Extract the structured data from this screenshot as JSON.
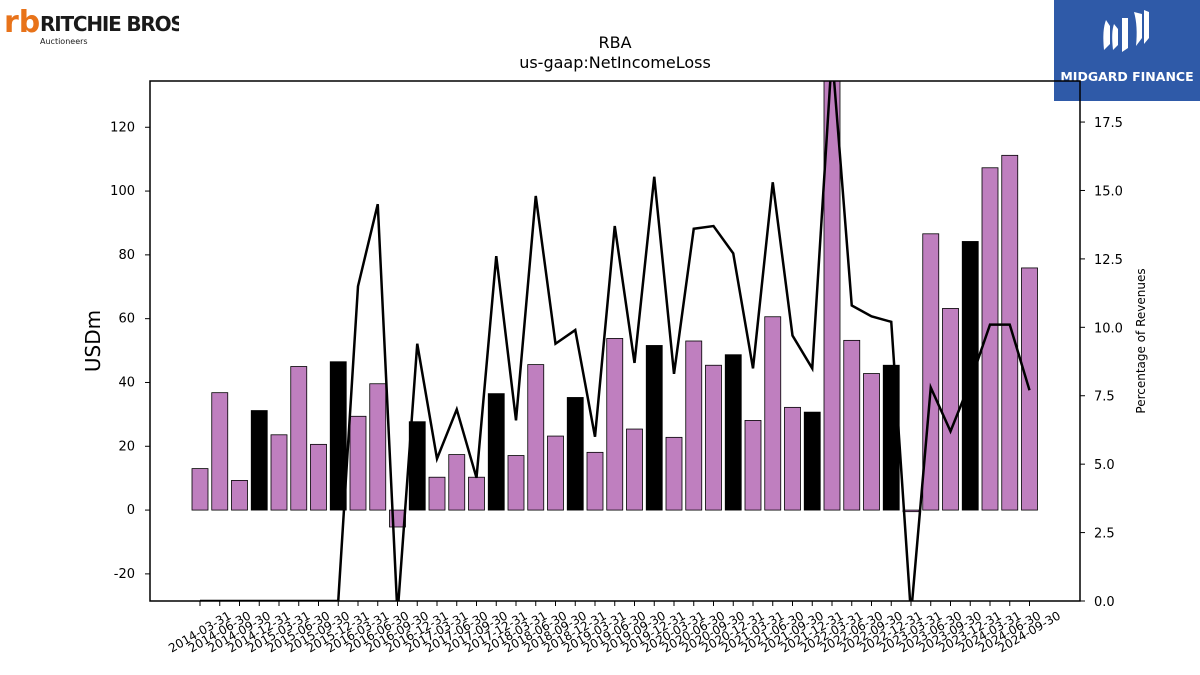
{
  "logos": {
    "left_name": "RITCHIE BROS.",
    "left_sub": "Auctioneers",
    "left_mark": "rb",
    "right_name": "MIDGARD FINANCE",
    "right_color": "#2f5aa8"
  },
  "chart_data": {
    "type": "bar",
    "title": "RBA",
    "subtitle": "us-gaap:NetIncomeLoss",
    "ylabel": "USDm",
    "y2label": "Percentage of Revenues",
    "ylim": [
      -28.5,
      134.5
    ],
    "y2lim": [
      0,
      19
    ],
    "yticks": [
      -20,
      0,
      20,
      40,
      60,
      80,
      100,
      120
    ],
    "y2ticks": [
      "0.0",
      "2.5",
      "5.0",
      "7.5",
      "10.0",
      "12.5",
      "15.0",
      "17.5"
    ],
    "categories": [
      "2014-03-31",
      "2014-06-30",
      "2014-09-30",
      "2014-12-31",
      "2015-03-31",
      "2015-06-30",
      "2015-09-30",
      "2015-12-31",
      "2016-03-31",
      "2016-06-30",
      "2016-09-30",
      "2016-12-31",
      "2017-03-31",
      "2017-06-30",
      "2017-09-30",
      "2017-12-31",
      "2018-03-31",
      "2018-06-30",
      "2018-09-30",
      "2018-12-31",
      "2019-03-31",
      "2019-06-30",
      "2019-09-30",
      "2019-12-31",
      "2020-03-31",
      "2020-06-30",
      "2020-09-30",
      "2020-12-31",
      "2021-03-31",
      "2021-06-30",
      "2021-09-30",
      "2021-12-31",
      "2022-03-31",
      "2022-06-30",
      "2022-09-30",
      "2022-12-31",
      "2023-03-31",
      "2023-06-30",
      "2023-09-30",
      "2023-12-31",
      "2024-03-31",
      "2024-06-30",
      "2024-09-30"
    ],
    "series": [
      {
        "type": "bar",
        "values": [
          13,
          36.8,
          9.3,
          31.2,
          23.6,
          45,
          20.6,
          46.5,
          29.4,
          39.6,
          -5.3,
          27.7,
          10.3,
          17.4,
          10.3,
          36.5,
          17.1,
          45.6,
          23.2,
          35.3,
          18.1,
          53.8,
          25.4,
          51.6,
          22.8,
          53,
          45.4,
          48.7,
          28.1,
          60.6,
          32.2,
          30.7,
          138,
          53.2,
          42.8,
          45.4,
          -0.5,
          86.6,
          63.2,
          84.2,
          107.3,
          111.2,
          75.9
        ],
        "colors": [
          "#bf7fbf",
          "#bf7fbf",
          "#bf7fbf",
          "#000000",
          "#bf7fbf",
          "#bf7fbf",
          "#bf7fbf",
          "#000000",
          "#bf7fbf",
          "#bf7fbf",
          "#bf7fbf",
          "#000000",
          "#bf7fbf",
          "#bf7fbf",
          "#bf7fbf",
          "#000000",
          "#bf7fbf",
          "#bf7fbf",
          "#bf7fbf",
          "#000000",
          "#bf7fbf",
          "#bf7fbf",
          "#bf7fbf",
          "#000000",
          "#bf7fbf",
          "#bf7fbf",
          "#bf7fbf",
          "#000000",
          "#bf7fbf",
          "#bf7fbf",
          "#bf7fbf",
          "#000000",
          "#bf7fbf",
          "#bf7fbf",
          "#bf7fbf",
          "#000000",
          "#bf7fbf",
          "#bf7fbf",
          "#bf7fbf",
          "#000000",
          "#bf7fbf",
          "#bf7fbf",
          "#bf7fbf"
        ]
      },
      {
        "type": "line",
        "axis": "right",
        "color": "#000000",
        "values": [
          0,
          0,
          0,
          0,
          0,
          0,
          0,
          0,
          11.5,
          14.5,
          -0.5,
          9.4,
          5.2,
          7,
          4.5,
          12.6,
          6.6,
          14.8,
          9.4,
          9.9,
          6,
          13.7,
          8.7,
          15.5,
          8.3,
          13.6,
          13.7,
          12.7,
          8.5,
          15.3,
          9.7,
          8.5,
          20,
          10.8,
          10.4,
          10.2,
          -0.5,
          7.8,
          6.2,
          8,
          10.1,
          10.1,
          7.7
        ]
      }
    ],
    "grid": false
  }
}
